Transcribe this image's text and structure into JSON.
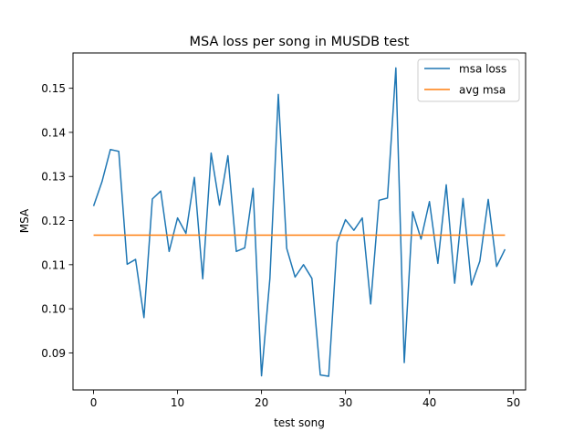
{
  "chart_data": {
    "type": "line",
    "title": "MSA loss per song in MUSDB test",
    "xlabel": "test song",
    "ylabel": "MSA",
    "xlim": [
      -2.45,
      51.45
    ],
    "ylim": [
      0.0816,
      0.158
    ],
    "xticks": [
      0,
      10,
      20,
      30,
      40,
      50
    ],
    "xtick_labels": [
      "0",
      "10",
      "20",
      "30",
      "40",
      "50"
    ],
    "yticks": [
      0.09,
      0.1,
      0.11,
      0.12,
      0.13,
      0.14,
      0.15
    ],
    "ytick_labels": [
      "0.09",
      "0.10",
      "0.11",
      "0.12",
      "0.13",
      "0.14",
      "0.15"
    ],
    "grid": false,
    "legend_position": "top-right",
    "series": [
      {
        "name": "msa loss",
        "color": "#1f77b4",
        "x": [
          0,
          1,
          2,
          3,
          4,
          5,
          6,
          7,
          8,
          9,
          10,
          11,
          12,
          13,
          14,
          15,
          16,
          17,
          18,
          19,
          20,
          21,
          22,
          23,
          24,
          25,
          26,
          27,
          28,
          29,
          30,
          31,
          32,
          33,
          34,
          35,
          36,
          37,
          38,
          39,
          40,
          41,
          42,
          43,
          44,
          45,
          46,
          47,
          48,
          49
        ],
        "y": [
          0.1233,
          0.1288,
          0.1361,
          0.1357,
          0.1101,
          0.1112,
          0.098,
          0.1249,
          0.1267,
          0.113,
          0.1206,
          0.1171,
          0.1298,
          0.1068,
          0.1353,
          0.1235,
          0.1347,
          0.113,
          0.1138,
          0.1273,
          0.0848,
          0.1069,
          0.1486,
          0.1137,
          0.1072,
          0.11,
          0.1069,
          0.085,
          0.0847,
          0.1151,
          0.1202,
          0.1178,
          0.1206,
          0.1011,
          0.1246,
          0.1251,
          0.1546,
          0.0878,
          0.122,
          0.1158,
          0.1243,
          0.1103,
          0.1281,
          0.1058,
          0.125,
          0.1054,
          0.1108,
          0.1248,
          0.1096,
          0.1135
        ]
      },
      {
        "name": "avg msa",
        "color": "#ff7f0e",
        "x": [
          0,
          49
        ],
        "y": [
          0.1167,
          0.1167
        ]
      }
    ]
  }
}
